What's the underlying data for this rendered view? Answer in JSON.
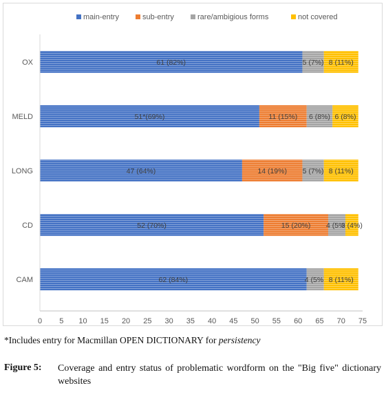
{
  "chart_data": {
    "type": "bar",
    "orientation": "horizontal",
    "stacked": true,
    "categories": [
      "OX",
      "MELD",
      "LONG",
      "CD",
      "CAM"
    ],
    "series": [
      {
        "name": "main-entry",
        "color": "#4472C4",
        "values": [
          61,
          51,
          47,
          52,
          62
        ],
        "labels": [
          "61 (82%)",
          "51*(69%)",
          "47 (64%)",
          "52 (70%)",
          "62 (84%)"
        ]
      },
      {
        "name": "sub-entry",
        "color": "#ED7D31",
        "values": [
          0,
          11,
          14,
          15,
          0
        ],
        "labels": [
          "",
          "11 (15%)",
          "14 (19%)",
          "15 (20%)",
          ""
        ]
      },
      {
        "name": "rare/ambigious forms",
        "color": "#A5A5A5",
        "values": [
          5,
          6,
          5,
          4,
          4
        ],
        "labels": [
          "5 (7%)",
          "6 (8%)",
          "5 (7%)",
          "4 (5%)",
          "4 (5%)"
        ]
      },
      {
        "name": "not covered",
        "color": "#FFC000",
        "values": [
          8,
          6,
          8,
          3,
          8
        ],
        "labels": [
          "8 (11%)",
          "6 (8%)",
          "8 (11%)",
          "3 (4%)",
          "8 (11%)"
        ]
      }
    ],
    "xlim": [
      0,
      75
    ],
    "xticks": [
      "0",
      "5",
      "10",
      "15",
      "20",
      "25",
      "30",
      "35",
      "40",
      "45",
      "50",
      "55",
      "60",
      "65",
      "70",
      "75"
    ],
    "grid": false,
    "legend": "top"
  },
  "footnote": {
    "prefix": "*Includes entry for Macmillan OPEN DICTIONARY for ",
    "italic": "persistency"
  },
  "caption": {
    "label": "Figure 5:",
    "text": "Coverage and entry status of problematic wordform on the \"Big five\" dictionary websites"
  }
}
